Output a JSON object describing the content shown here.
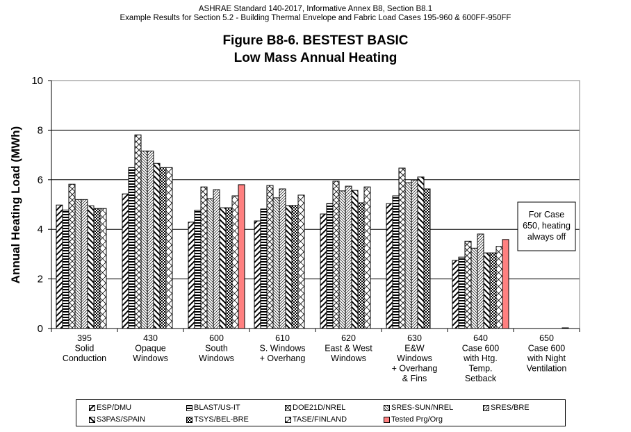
{
  "header": {
    "line1": "ASHRAE Standard 140-2017, Informative Annex B8, Section B8.1",
    "line2": "Example Results for Section 5.2 - Building Thermal Envelope and Fabric Load Cases 195-960 & 600FF-950FF"
  },
  "chart_data": {
    "type": "bar",
    "title": "Figure B8-6.  BESTEST BASIC",
    "subtitle": "Low Mass Annual Heating",
    "xlabel": "",
    "ylabel": "Annual Heating Load (MWh)",
    "ylim": [
      0,
      10
    ],
    "yticks": [
      "0",
      "2",
      "4",
      "6",
      "8",
      "10"
    ],
    "grid": true,
    "legend_position": "bottom",
    "categories": [
      [
        "395",
        "Solid",
        "Conduction"
      ],
      [
        "430",
        "Opaque",
        "Windows"
      ],
      [
        "600",
        "South",
        "Windows"
      ],
      [
        "610",
        "S. Windows",
        "+ Overhang"
      ],
      [
        "620",
        "East & West",
        "Windows"
      ],
      [
        "630",
        "E&W",
        "Windows",
        "+ Overhang",
        "& Fins"
      ],
      [
        "640",
        "Case 600",
        "with Htg.",
        "Temp.",
        "Setback"
      ],
      [
        "650",
        "Case 600",
        "with Night",
        "Ventilation"
      ]
    ],
    "series": [
      {
        "name": "ESP/DMU",
        "pattern": "diag-up-bold",
        "values": [
          4.98,
          5.43,
          4.29,
          4.34,
          4.62,
          5.04,
          2.75,
          null
        ]
      },
      {
        "name": "BLAST/US-IT",
        "pattern": "horizontal",
        "values": [
          4.78,
          6.49,
          4.77,
          4.82,
          5.04,
          5.35,
          2.88,
          null
        ]
      },
      {
        "name": "DOE21D/NREL",
        "pattern": "crosshatch-diag",
        "values": [
          5.82,
          7.81,
          5.71,
          5.77,
          5.94,
          6.47,
          3.52,
          null
        ]
      },
      {
        "name": "SRES-SUN/NREL",
        "pattern": "diag-down-fine",
        "values": [
          5.2,
          7.16,
          5.24,
          5.27,
          5.55,
          5.88,
          3.24,
          null
        ]
      },
      {
        "name": "SRES/BRE",
        "pattern": "diag-up-fine",
        "values": [
          5.2,
          7.16,
          5.6,
          5.63,
          5.74,
          5.99,
          3.81,
          null
        ]
      },
      {
        "name": "S3PAS/SPAIN",
        "pattern": "diag-down-bold",
        "values": [
          4.95,
          6.66,
          4.87,
          4.96,
          5.57,
          6.11,
          3.05,
          null
        ]
      },
      {
        "name": "TSYS/BEL-BRE",
        "pattern": "checker",
        "values": [
          4.84,
          6.49,
          4.87,
          4.96,
          5.07,
          5.63,
          3.05,
          null
        ]
      },
      {
        "name": "TASE/FINLAND",
        "pattern": "zigzag",
        "values": [
          4.84,
          6.49,
          5.35,
          5.38,
          5.71,
          null,
          3.31,
          0.02
        ]
      },
      {
        "name": "Tested Prg/Org",
        "pattern": "solid",
        "color": "#ff8080",
        "values": [
          null,
          null,
          5.8,
          null,
          null,
          null,
          3.59,
          null
        ]
      }
    ],
    "annotations": [
      {
        "text": [
          "For Case",
          "650, heating",
          "always off"
        ],
        "category": "650"
      }
    ]
  },
  "colors": {
    "tested": "#ff8080",
    "plot_border": "#808080",
    "gridline": "#000000"
  }
}
